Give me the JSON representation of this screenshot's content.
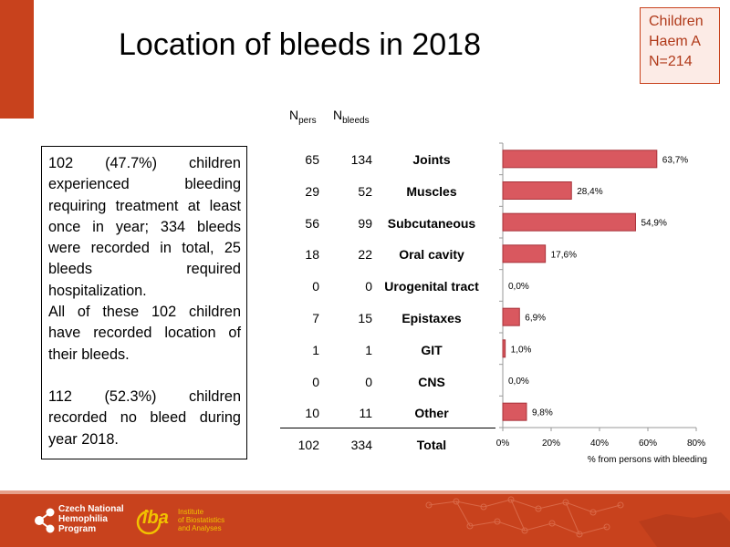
{
  "title": "Location of bleeds in 2018",
  "group_box": [
    "Children",
    "Haem A",
    "N=214"
  ],
  "summary": {
    "p1": "102 (47.7%) children experienced bleeding requiring treatment at least once in year; 334 bleeds were recorded in total, 25 bleeds required hospitalization.",
    "p2": "All of these 102 children have recorded location of their bleeds.",
    "p3": "112 (52.3%) children recorded no bleed during year 2018."
  },
  "table": {
    "header_npers_main": "N",
    "header_npers_sub": "pers",
    "header_nbleeds_main": "N",
    "header_nbleeds_sub": "bleeds",
    "rows": [
      {
        "npers": "65",
        "nbleeds": "134",
        "location": "Joints"
      },
      {
        "npers": "29",
        "nbleeds": "52",
        "location": "Muscles"
      },
      {
        "npers": "56",
        "nbleeds": "99",
        "location": "Subcutaneous"
      },
      {
        "npers": "18",
        "nbleeds": "22",
        "location": "Oral cavity"
      },
      {
        "npers": "0",
        "nbleeds": "0",
        "location": "Urogenital tract"
      },
      {
        "npers": "7",
        "nbleeds": "15",
        "location": "Epistaxes"
      },
      {
        "npers": "1",
        "nbleeds": "1",
        "location": "GIT"
      },
      {
        "npers": "0",
        "nbleeds": "0",
        "location": "CNS"
      },
      {
        "npers": "10",
        "nbleeds": "11",
        "location": "Other"
      }
    ],
    "total": {
      "npers": "102",
      "nbleeds": "334",
      "location": "Total"
    }
  },
  "chart_data": {
    "type": "bar",
    "orientation": "horizontal",
    "categories": [
      "Joints",
      "Muscles",
      "Subcutaneous",
      "Oral cavity",
      "Urogenital tract",
      "Epistaxes",
      "GIT",
      "CNS",
      "Other"
    ],
    "values": [
      63.7,
      28.4,
      54.9,
      17.6,
      0.0,
      6.9,
      1.0,
      0.0,
      9.8
    ],
    "data_labels": [
      "63,7%",
      "28,4%",
      "54,9%",
      "17,6%",
      "0,0%",
      "6,9%",
      "1,0%",
      "0,0%",
      "9,8%"
    ],
    "xlim": [
      0,
      80
    ],
    "x_ticks": [
      "0%",
      "20%",
      "40%",
      "60%",
      "80%"
    ],
    "xlabel": "% from persons with bleeding",
    "bar_color": "#d9585f",
    "bar_edge_color": "#a8323a"
  },
  "footer": {
    "cnhp_lines": [
      "Czech National",
      "Hemophilia",
      "Program"
    ],
    "iba_main": "iba",
    "iba_lines": [
      "Institute",
      "of Biostatistics",
      "and Analyses"
    ],
    "color": "#c8421d"
  }
}
